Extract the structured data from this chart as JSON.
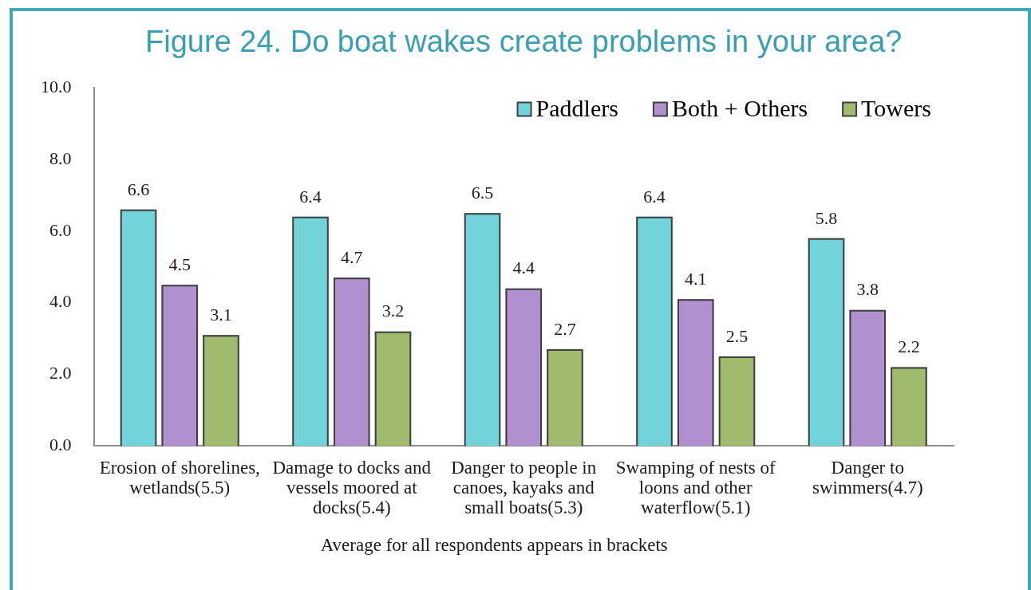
{
  "chart_data": {
    "type": "bar",
    "title": "Figure 24. Do boat wakes create problems in your area?",
    "categories": [
      "Erosion of shorelines, wetlands(5.5)",
      "Damage to docks and vessels moored at docks(5.4)",
      "Danger to people in canoes, kayaks and small boats(5.3)",
      "Swamping of nests of loons and other waterflow(5.1)",
      "Danger to swimmers(4.7)"
    ],
    "series": [
      {
        "name": "Paddlers",
        "color": "#72d3da",
        "values": [
          6.6,
          6.4,
          6.5,
          6.4,
          5.8
        ]
      },
      {
        "name": "Both + Others",
        "color": "#b190cf",
        "values": [
          4.5,
          4.7,
          4.4,
          4.1,
          3.8
        ]
      },
      {
        "name": "Towers",
        "color": "#a1bb6e",
        "values": [
          3.1,
          3.2,
          2.7,
          2.5,
          2.2
        ]
      }
    ],
    "ylim": [
      0,
      10
    ],
    "yticks": [
      {
        "value": 0,
        "label": "0.0"
      },
      {
        "value": 2,
        "label": "2.0"
      },
      {
        "value": 4,
        "label": "4.0"
      },
      {
        "value": 6,
        "label": "6.0"
      },
      {
        "value": 8,
        "label": "8.0"
      },
      {
        "value": 10,
        "label": "10.0"
      }
    ],
    "grid": false,
    "legend": "top right",
    "data_labels": true,
    "annotations": [
      "Average for all respondents appears in brackets"
    ]
  }
}
